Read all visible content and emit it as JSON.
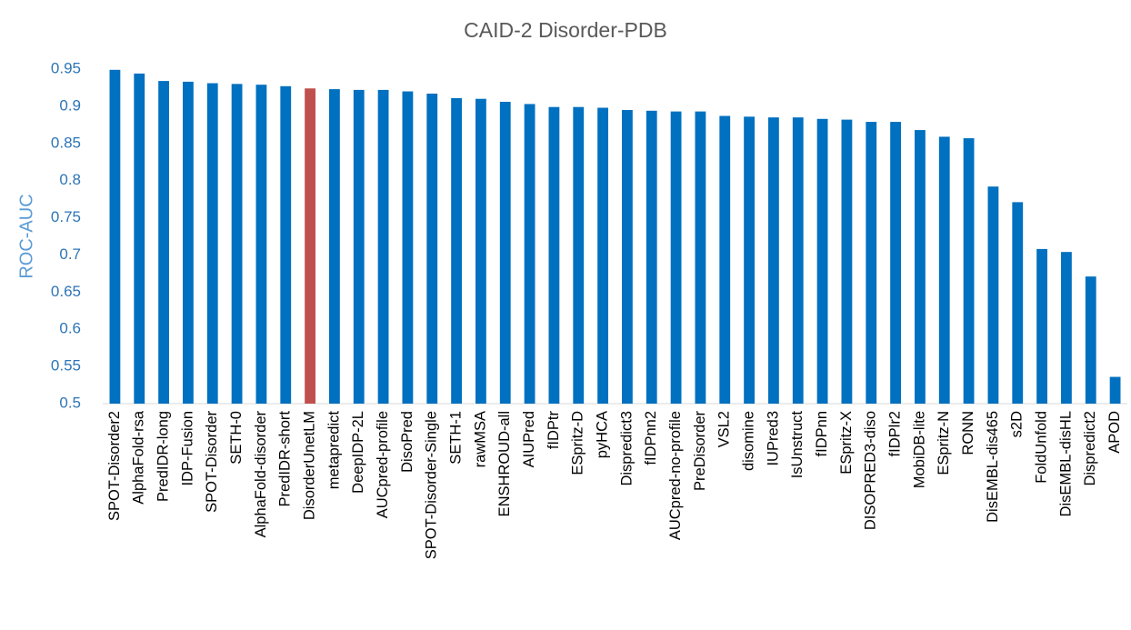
{
  "chart_data": {
    "type": "bar",
    "title": "CAID-2 Disorder-PDB",
    "y_label": "ROC-AUC",
    "categories": [
      "SPOT-Disorder2",
      "AlphaFold-rsa",
      "PredIDR-long",
      "IDP-Fusion",
      "SPOT-Disorder",
      "SETH-0",
      "AlphaFold-disorder",
      "PredIDR-short",
      "DisorderUnetLM",
      "metapredict",
      "DeepIDP-2L",
      "AUCpred-profile",
      "DisoPred",
      "SPOT-Disorder-Single",
      "SETH-1",
      "rawMSA",
      "ENSHROUD-all",
      "AIUPred",
      "fIDPtr",
      "ESpritz-D",
      "pyHCA",
      "Dispredict3",
      "fIDPnn2",
      "AUCpred-no-profile",
      "PreDisorder",
      "VSL2",
      "disomine",
      "IUPred3",
      "IsUnstruct",
      "fIDPnn",
      "ESpritz-X",
      "DISOPRED3-diso",
      "fIDPlr2",
      "MobiDB-lite",
      "ESpritz-N",
      "RONN",
      "DisEMBL-dis465",
      "s2D",
      "FoldUnfold",
      "DisEMBL-disHL",
      "Dispredict2",
      "APOD"
    ],
    "values": [
      0.949,
      0.944,
      0.934,
      0.933,
      0.931,
      0.93,
      0.929,
      0.927,
      0.924,
      0.923,
      0.922,
      0.922,
      0.92,
      0.917,
      0.911,
      0.91,
      0.906,
      0.903,
      0.899,
      0.899,
      0.898,
      0.895,
      0.894,
      0.893,
      0.893,
      0.887,
      0.886,
      0.885,
      0.885,
      0.883,
      0.882,
      0.879,
      0.879,
      0.868,
      0.859,
      0.857,
      0.792,
      0.771,
      0.708,
      0.704,
      0.671,
      0.536
    ],
    "color": "#0070c0",
    "highlight": {
      "index": 8,
      "color": "#c0504d"
    },
    "ylim": [
      0.5,
      0.95
    ],
    "yticks": [
      0.5,
      0.55,
      0.6,
      0.65,
      0.7,
      0.75,
      0.8,
      0.85,
      0.9,
      0.95
    ],
    "grid": false
  }
}
